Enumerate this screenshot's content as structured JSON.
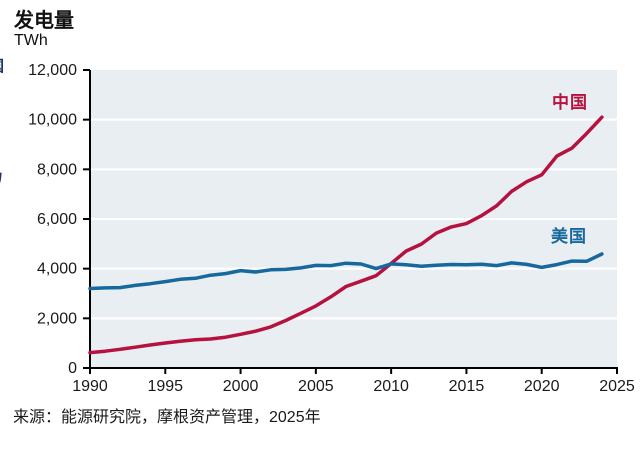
{
  "header": {
    "title": "发电量",
    "unit": "TWh"
  },
  "footer": {
    "source": "来源：能源研究院，摩根资产管理，2025年"
  },
  "edge_fragments": {
    "top": "国",
    "bottom": "易"
  },
  "chart_data": {
    "type": "line",
    "title": "发电量",
    "ylabel": "TWh",
    "xlabel": "",
    "xlim": [
      1990,
      2025
    ],
    "ylim": [
      0,
      12000
    ],
    "grid": "horizontal-white-gridlines-on",
    "plot_bg_color": "#e9eef2",
    "gridline_color": "#ffffff",
    "axis_color": "#000000",
    "legend_position": "inline-labels-near-line-ends",
    "xticks": {
      "values": [
        1990,
        1995,
        2000,
        2005,
        2010,
        2015,
        2020,
        2025
      ],
      "labels": [
        "1990",
        "1995",
        "2000",
        "2005",
        "2010",
        "2015",
        "2020",
        "2025"
      ]
    },
    "yticks": {
      "values": [
        0,
        2000,
        4000,
        6000,
        8000,
        10000,
        12000
      ],
      "labels": [
        "0",
        "2,000",
        "4,000",
        "6,000",
        "8,000",
        "10,000",
        "12,000"
      ]
    },
    "x": [
      1990,
      1991,
      1992,
      1993,
      1994,
      1995,
      1996,
      1997,
      1998,
      1999,
      2000,
      2001,
      2002,
      2003,
      2004,
      2005,
      2006,
      2007,
      2008,
      2009,
      2010,
      2011,
      2012,
      2013,
      2014,
      2015,
      2016,
      2017,
      2018,
      2019,
      2020,
      2021,
      2022,
      2023,
      2024
    ],
    "series": [
      {
        "name": "中国",
        "color": "#b5123f",
        "values": [
          621,
          678,
          754,
          839,
          928,
          1008,
          1081,
          1136,
          1167,
          1239,
          1356,
          1481,
          1654,
          1911,
          2203,
          2500,
          2866,
          3282,
          3495,
          3715,
          4207,
          4713,
          4988,
          5432,
          5680,
          5815,
          6133,
          6529,
          7111,
          7503,
          7779,
          8534,
          8849,
          9456,
          10100
        ]
      },
      {
        "name": "美国",
        "color": "#17699d",
        "values": [
          3203,
          3226,
          3239,
          3328,
          3396,
          3478,
          3570,
          3614,
          3736,
          3800,
          3921,
          3864,
          3954,
          3971,
          4029,
          4133,
          4125,
          4221,
          4186,
          4003,
          4190,
          4159,
          4098,
          4136,
          4169,
          4161,
          4177,
          4124,
          4231,
          4171,
          4050,
          4165,
          4305,
          4300,
          4590
        ]
      }
    ]
  }
}
